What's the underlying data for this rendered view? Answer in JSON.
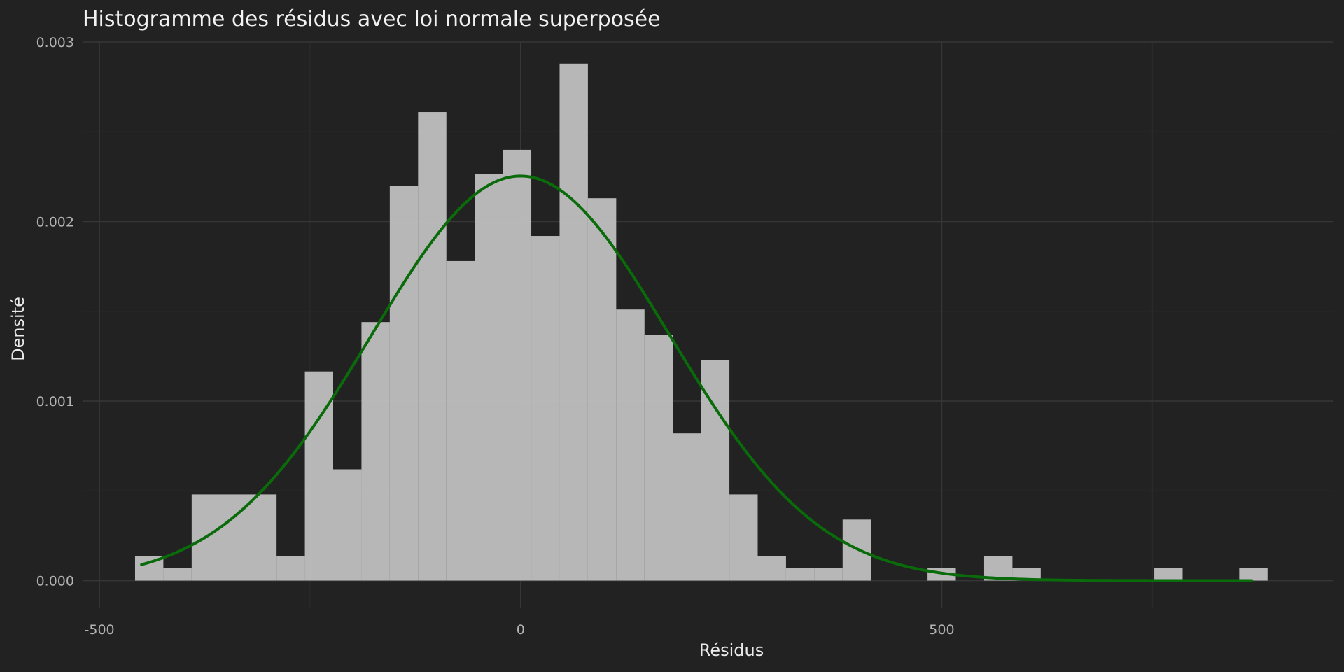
{
  "chart_data": {
    "type": "bar",
    "title": "Histogramme des résidus avec loi normale superposée",
    "xlabel": "Résidus",
    "ylabel": "Densité",
    "xlim": [
      -520,
      965
    ],
    "ylim": [
      -0.00015,
      0.003
    ],
    "x_ticks": [
      -500,
      0,
      500
    ],
    "x_tick_labels": [
      "-500",
      "0",
      "500"
    ],
    "y_ticks": [
      0,
      0.001,
      0.002,
      0.003
    ],
    "y_tick_labels": [
      "0.000",
      "0.001",
      "0.002",
      "0.003"
    ],
    "grid": true,
    "colors": {
      "background": "#222222",
      "bars": "#c0c0c0",
      "curve": "#0a6b0a",
      "grid_major": "#363636",
      "grid_minor": "#2b2b2b"
    },
    "series": [
      {
        "type": "histogram",
        "bin_width": 33.6,
        "bins": [
          {
            "x0": -457.7,
            "x1": -424.1,
            "density": 0.000135
          },
          {
            "x0": -424.1,
            "x1": -390.5,
            "density": 7e-05
          },
          {
            "x0": -390.5,
            "x1": -356.9,
            "density": 0.00048
          },
          {
            "x0": -356.9,
            "x1": -323.3,
            "density": 0.00048
          },
          {
            "x0": -323.3,
            "x1": -289.7,
            "density": 0.00048
          },
          {
            "x0": -289.7,
            "x1": -256.1,
            "density": 0.000135
          },
          {
            "x0": -256.1,
            "x1": -222.5,
            "density": 0.001165
          },
          {
            "x0": -222.5,
            "x1": -188.9,
            "density": 0.00062
          },
          {
            "x0": -188.9,
            "x1": -155.3,
            "density": 0.00144
          },
          {
            "x0": -155.3,
            "x1": -121.7,
            "density": 0.0022
          },
          {
            "x0": -121.7,
            "x1": -88.1,
            "density": 0.00261
          },
          {
            "x0": -88.1,
            "x1": -54.5,
            "density": 0.00178
          },
          {
            "x0": -54.5,
            "x1": -20.9,
            "density": 0.002265
          },
          {
            "x0": -20.9,
            "x1": 12.7,
            "density": 0.0024
          },
          {
            "x0": 12.7,
            "x1": 46.3,
            "density": 0.00192
          },
          {
            "x0": 46.3,
            "x1": 79.9,
            "density": 0.00288
          },
          {
            "x0": 79.9,
            "x1": 113.5,
            "density": 0.00213
          },
          {
            "x0": 113.5,
            "x1": 147.1,
            "density": 0.00151
          },
          {
            "x0": 147.1,
            "x1": 180.7,
            "density": 0.00137
          },
          {
            "x0": 180.7,
            "x1": 214.3,
            "density": 0.00082
          },
          {
            "x0": 214.3,
            "x1": 247.9,
            "density": 0.00123
          },
          {
            "x0": 247.9,
            "x1": 281.5,
            "density": 0.00048
          },
          {
            "x0": 281.5,
            "x1": 315.1,
            "density": 0.000135
          },
          {
            "x0": 315.1,
            "x1": 348.7,
            "density": 7e-05
          },
          {
            "x0": 348.7,
            "x1": 382.3,
            "density": 7e-05
          },
          {
            "x0": 382.3,
            "x1": 415.9,
            "density": 0.00034
          },
          {
            "x0": 483.1,
            "x1": 516.7,
            "density": 7e-05
          },
          {
            "x0": 550.3,
            "x1": 583.9,
            "density": 0.000135
          },
          {
            "x0": 583.9,
            "x1": 617.5,
            "density": 7e-05
          },
          {
            "x0": 752.3,
            "x1": 785.9,
            "density": 7e-05
          },
          {
            "x0": 853.1,
            "x1": 886.7,
            "density": 7e-05
          }
        ]
      },
      {
        "type": "normal-density-curve",
        "mean": 0,
        "sd": 177,
        "x_range": [
          -450,
          868
        ]
      }
    ]
  }
}
